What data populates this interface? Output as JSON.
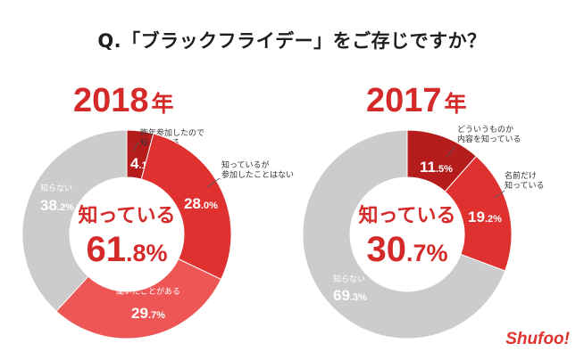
{
  "question": "Q.「ブラックフライデー」をご存じですか？",
  "logo": "Shufoo!",
  "chart_data": [
    {
      "type": "pie",
      "year_number": "2018",
      "year_unit": "年",
      "center_label": "知っている",
      "center_value": "61.8",
      "center_unit": "%",
      "slices": [
        {
          "name_lines": [
            "昨年参加したので",
            "知っている"
          ],
          "value": 4.1,
          "color": "#b51d1d"
        },
        {
          "name_lines": [
            "知っているが",
            "参加したことはない"
          ],
          "value": 28.0,
          "color": "#e03131"
        },
        {
          "name_lines": [
            "聞いたことがある"
          ],
          "value": 29.7,
          "color": "#ee5656"
        },
        {
          "name_lines": [
            "知らない"
          ],
          "value": 38.2,
          "color": "#cccccc"
        }
      ]
    },
    {
      "type": "pie",
      "year_number": "2017",
      "year_unit": "年",
      "center_label": "知っている",
      "center_value": "30.7",
      "center_unit": "%",
      "slices": [
        {
          "name_lines": [
            "どういうものか",
            "内容を知っている"
          ],
          "value": 11.5,
          "color": "#b51d1d"
        },
        {
          "name_lines": [
            "名前だけ",
            "知っている"
          ],
          "value": 19.2,
          "color": "#e03131"
        },
        {
          "name_lines": [
            "知らない"
          ],
          "value": 69.3,
          "color": "#cccccc"
        }
      ]
    }
  ]
}
